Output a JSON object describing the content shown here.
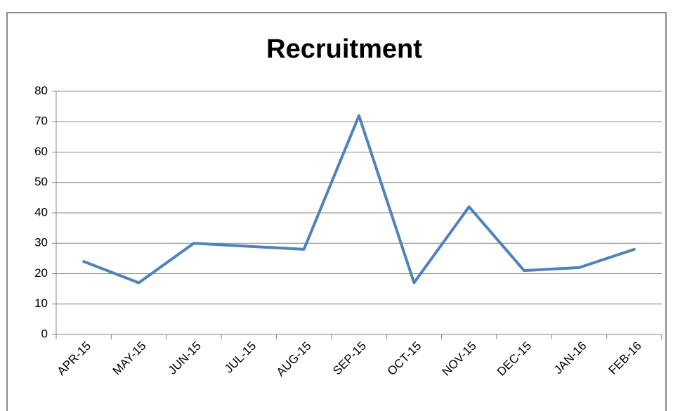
{
  "chart_data": {
    "type": "line",
    "title": "Recruitment",
    "categories": [
      "APR-15",
      "MAY-15",
      "JUN-15",
      "JUL-15",
      "AUG-15",
      "SEP-15",
      "OCT-15",
      "NOV-15",
      "DEC-15",
      "JAN-16",
      "FEB-16"
    ],
    "values": [
      24,
      17,
      30,
      29,
      28,
      72,
      17,
      42,
      21,
      22,
      28
    ],
    "color": "#4f81bd",
    "ylim": [
      0,
      80
    ],
    "yticks": [
      0,
      10,
      20,
      30,
      40,
      50,
      60,
      70,
      80
    ],
    "grid": true
  }
}
